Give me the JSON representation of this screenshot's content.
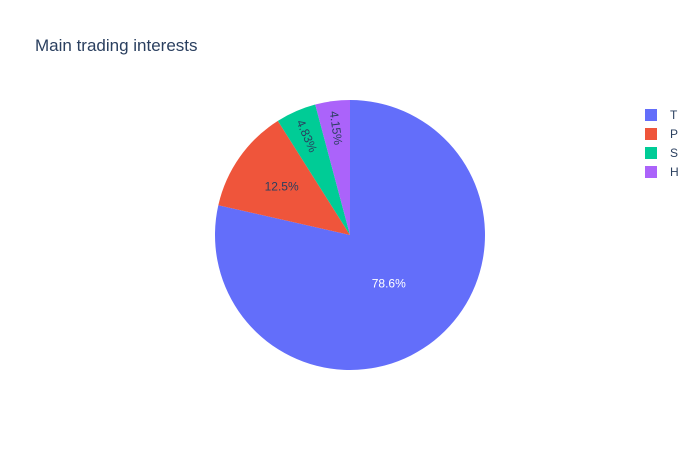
{
  "chart_data": {
    "type": "pie",
    "title": "Main trading interests",
    "legend_position": "top-right",
    "direction": "clockwise",
    "start_angle": "top",
    "categories": [
      "T",
      "P",
      "S",
      "H"
    ],
    "values": [
      78.6,
      12.5,
      4.83,
      4.15
    ],
    "labels": [
      "78.6%",
      "12.5%",
      "4.83%",
      "4.15%"
    ],
    "colors": [
      "#636efa",
      "#ef553b",
      "#00cc96",
      "#ab63fa"
    ],
    "label_colors": [
      "#ffffff",
      "#2a3f5f",
      "#2a3f5f",
      "#2a3f5f"
    ]
  }
}
